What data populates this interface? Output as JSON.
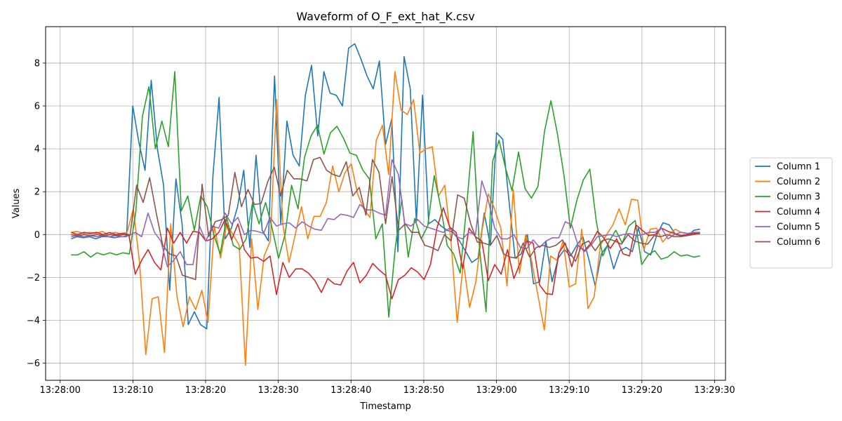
{
  "chart_data": {
    "type": "line",
    "title": "Waveform of O_F_ext_hat_K.csv",
    "xlabel": "Timestamp",
    "ylabel": "Values",
    "x_start": "13:28:01.5",
    "x_end": "13:29:28",
    "xlim": [
      "13:27:58",
      "13:29:31.5"
    ],
    "ylim": [
      -6.8,
      9.7
    ],
    "xticks": [
      "13:28:00",
      "13:28:10",
      "13:28:20",
      "13:28:30",
      "13:28:40",
      "13:28:50",
      "13:29:00",
      "13:29:10",
      "13:29:20",
      "13:29:30"
    ],
    "yticks": [
      -6,
      -4,
      -2,
      0,
      2,
      4,
      6,
      8
    ],
    "grid": true,
    "legend": "right",
    "series": [
      {
        "name": "Column 1",
        "color": "#1f77b4",
        "values": [
          -0.2,
          -0.1,
          -0.15,
          -0.1,
          -0.2,
          -0.1,
          -0.1,
          -0.15,
          -0.1,
          -0.1,
          6.0,
          4.3,
          3.0,
          7.2,
          4.0,
          2.3,
          -2.6,
          2.6,
          0.5,
          -4.2,
          -3.6,
          -4.2,
          -4.4,
          2.7,
          6.4,
          -0.2,
          0.3,
          1.3,
          3.0,
          -0.6,
          3.7,
          0.2,
          -0.3,
          7.4,
          0.5,
          5.3,
          3.7,
          3.2,
          6.5,
          7.9,
          4.6,
          7.6,
          6.6,
          6.5,
          6.0,
          8.7,
          8.9,
          8.2,
          7.4,
          6.8,
          8.1,
          4.2,
          5.4,
          -0.8,
          8.3,
          6.8,
          0.6,
          6.5,
          0.5,
          0.7,
          0.4,
          0.2,
          0.1,
          -0.3,
          -0.8,
          -1.3,
          -1.1,
          1.0,
          -0.5,
          4.75,
          4.45,
          1.6,
          -1.1,
          -0.9,
          0.0,
          -2.3,
          -2.2,
          -0.3,
          -2.2,
          -1.1,
          -0.7,
          -1.0,
          -0.5,
          -0.1,
          -1.2,
          -2.4,
          -0.9,
          -0.5,
          -1.6,
          -0.75,
          -0.6,
          -0.8,
          0.3,
          -0.8,
          -0.95,
          0.0,
          0.55,
          0.45,
          0.0,
          -0.05,
          -0.05,
          0.2,
          0.25
        ]
      },
      {
        "name": "Column 2",
        "color": "#ff7f0e",
        "values": [
          0.1,
          0.15,
          0.05,
          0.1,
          0.05,
          0.15,
          0.0,
          0.1,
          0.05,
          0.1,
          1.2,
          -1.3,
          -5.6,
          -3.0,
          -2.9,
          -5.5,
          0.5,
          -2.9,
          -4.3,
          -2.9,
          -3.5,
          -2.6,
          -4.1,
          0.4,
          -1.1,
          0.5,
          0.0,
          -0.5,
          -6.1,
          -0.2,
          -3.5,
          -1.0,
          -0.3,
          6.3,
          0.5,
          -1.3,
          0.0,
          1.3,
          -0.2,
          0.85,
          0.85,
          1.5,
          3.2,
          2.0,
          2.9,
          3.3,
          1.9,
          1.2,
          0.8,
          4.4,
          5.1,
          2.8,
          7.6,
          5.8,
          5.6,
          6.3,
          3.8,
          4.0,
          4.1,
          1.8,
          2.3,
          -0.3,
          -4.1,
          -1.3,
          -3.4,
          -2.2,
          0.2,
          1.9,
          1.2,
          0.3,
          -2.4,
          2.1,
          -1.8,
          0.0,
          -1.3,
          -2.9,
          -4.45,
          -1.0,
          -1.2,
          -0.3,
          -2.45,
          -2.3,
          0.25,
          -3.45,
          -2.9,
          -0.5,
          0.0,
          0.45,
          1.2,
          0.45,
          1.65,
          1.6,
          -0.7,
          0.25,
          0.3,
          -0.35,
          0.0,
          0.25,
          0.1,
          0.05,
          0.1,
          0.1
        ]
      },
      {
        "name": "Column 3",
        "color": "#2ca02c",
        "values": [
          -0.95,
          -0.95,
          -0.8,
          -1.05,
          -0.85,
          -0.95,
          -0.85,
          -0.95,
          -0.85,
          -0.9,
          1.1,
          5.5,
          6.9,
          4.0,
          5.3,
          4.1,
          7.6,
          1.1,
          1.8,
          0.2,
          1.8,
          1.3,
          0.0,
          -0.9,
          0.8,
          -0.5,
          -0.7,
          -0.2,
          1.5,
          0.5,
          1.5,
          0.3,
          -1.1,
          0.0,
          2.3,
          1.2,
          3.6,
          4.6,
          5.1,
          3.75,
          4.75,
          5.05,
          4.5,
          3.8,
          3.7,
          3.0,
          2.6,
          -0.2,
          0.5,
          -3.85,
          -0.6,
          1.65,
          -1.05,
          0.75,
          -0.2,
          0.4,
          2.75,
          1.3,
          -0.5,
          -0.9,
          -1.8,
          1.3,
          4.8,
          -0.7,
          -3.6,
          3.4,
          4.4,
          3.1,
          2.05,
          3.85,
          2.15,
          1.7,
          2.25,
          4.8,
          6.25,
          4.7,
          2.8,
          0.3,
          1.6,
          2.55,
          3.05,
          0.6,
          -1.0,
          -0.3,
          0.2,
          -0.4,
          0.4,
          0.65,
          -1.4,
          -0.95,
          -0.75,
          -1.15,
          -1.05,
          -0.8,
          -1.0,
          -0.95,
          -1.05,
          -1.0
        ]
      },
      {
        "name": "Column 4",
        "color": "#d62728",
        "values": [
          0.1,
          0.0,
          0.1,
          0.05,
          0.1,
          0.0,
          0.1,
          0.0,
          0.05,
          0.0,
          -1.85,
          -1.2,
          -0.7,
          -1.3,
          -1.65,
          0.3,
          -0.4,
          0.1,
          -0.4,
          0.15,
          0.1,
          -0.3,
          -0.2,
          0.1,
          0.7,
          -0.25,
          0.5,
          -0.7,
          -1.1,
          -1.05,
          -1.25,
          -1.0,
          -2.8,
          -1.3,
          -2.0,
          -1.6,
          -1.6,
          -1.8,
          -2.15,
          -2.7,
          -2.05,
          -2.3,
          -2.35,
          -1.7,
          -1.3,
          -2.25,
          -1.9,
          -1.35,
          -1.65,
          -1.9,
          -3.0,
          -2.1,
          -1.9,
          -1.55,
          -1.75,
          -2.1,
          -1.4,
          0.3,
          1.25,
          0.35,
          0.1,
          -1.6,
          0.3,
          -0.1,
          -0.3,
          -2.15,
          -1.4,
          -1.85,
          -0.7,
          -2.05,
          -1.3,
          -0.3,
          -0.4,
          -2.35,
          -2.75,
          -2.8,
          -0.85,
          -0.4,
          -1.5,
          -0.5,
          -0.75,
          -0.4,
          0.15,
          -0.15,
          -0.65,
          -0.2,
          -0.9,
          -1.0,
          0.45,
          0.2,
          -0.05,
          0.0,
          0.3,
          0.15,
          0.05,
          -0.05,
          0.0,
          0.05,
          0.05
        ]
      },
      {
        "name": "Column 5",
        "color": "#9467bd",
        "values": [
          -0.1,
          -0.05,
          -0.1,
          -0.05,
          -0.1,
          -0.05,
          -0.1,
          -0.05,
          -0.1,
          -0.05,
          0.1,
          -0.1,
          1.0,
          0.1,
          -0.3,
          -1.5,
          -1.2,
          -0.8,
          -1.4,
          -1.4,
          0.4,
          -0.3,
          0.4,
          0.3,
          1.0,
          0.5,
          0.8,
          0.0,
          0.2,
          0.15,
          0.05,
          0.8,
          0.4,
          0.5,
          0.55,
          0.3,
          0.6,
          0.4,
          0.25,
          0.2,
          0.75,
          0.7,
          0.95,
          0.9,
          0.8,
          1.4,
          1.15,
          1.15,
          1.0,
          0.9,
          3.5,
          2.8,
          0.5,
          0.4,
          0.7,
          0.4,
          0.3,
          0.2,
          0.1,
          0.3,
          -0.1,
          -0.2,
          0.1,
          0.0,
          2.5,
          1.6,
          0.3,
          -0.2,
          -0.2,
          0.0,
          -0.6,
          -0.65,
          -0.25,
          -0.6,
          -0.3,
          -0.15,
          -0.15,
          0.6,
          0.45,
          -0.5,
          -0.8,
          -0.5,
          -0.1,
          -0.05,
          0.0,
          -0.1,
          0.0,
          0.05,
          -0.05,
          0.0,
          0.1,
          0.1,
          0.3,
          -0.2,
          0.0,
          0.1,
          0.05,
          0.1,
          0.1
        ]
      },
      {
        "name": "Column 6",
        "color": "#8c564b",
        "values": [
          0.0,
          -0.05,
          0.0,
          -0.05,
          0.0,
          -0.05,
          0.0,
          -0.05,
          0.0,
          -0.05,
          2.3,
          1.5,
          2.65,
          1.0,
          -0.5,
          -0.9,
          -1.0,
          -1.9,
          -2.0,
          -2.1,
          2.35,
          -0.1,
          0.6,
          0.7,
          0.9,
          2.9,
          1.3,
          2.1,
          1.4,
          1.45,
          2.45,
          3.15,
          1.8,
          3.0,
          2.6,
          2.6,
          2.5,
          3.5,
          3.6,
          3.0,
          2.8,
          2.7,
          3.4,
          1.8,
          2.2,
          0.9,
          3.5,
          2.9,
          0.5,
          2.7,
          0.2,
          0.5,
          0.1,
          0.1,
          -0.5,
          -0.6,
          -0.75,
          0.0,
          -0.3,
          1.85,
          1.7,
          0.5,
          -0.35,
          -0.4,
          -0.5,
          -0.05,
          -0.9,
          -1.05,
          -1.1,
          -0.4,
          -1.05,
          -0.6,
          -0.5,
          -0.6,
          -0.5,
          -0.25,
          -0.8,
          -1.25,
          -0.45,
          -0.3,
          -0.75,
          -0.3,
          -0.2,
          -0.3,
          -0.45,
          0.0,
          -0.3,
          -0.4,
          -0.45,
          -0.05,
          -0.1,
          0.0,
          -0.1,
          -0.1,
          -0.05,
          0.0,
          0.05
        ]
      }
    ]
  }
}
